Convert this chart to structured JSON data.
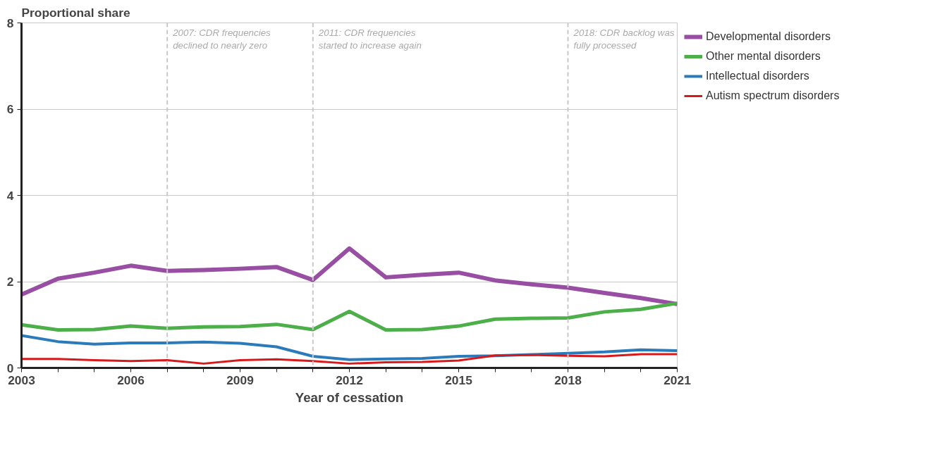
{
  "chart_data": {
    "type": "line",
    "ylabel": "Proportional share",
    "xlabel": "Year of cessation",
    "x": [
      2003,
      2004,
      2005,
      2006,
      2007,
      2008,
      2009,
      2010,
      2011,
      2012,
      2013,
      2014,
      2015,
      2016,
      2017,
      2018,
      2019,
      2020,
      2021
    ],
    "series": [
      {
        "name": "Developmental disorders",
        "color": "#984ea3",
        "values": [
          1.7,
          2.07,
          2.21,
          2.37,
          2.25,
          2.27,
          2.3,
          2.34,
          2.04,
          2.77,
          2.1,
          2.16,
          2.21,
          2.03,
          1.94,
          1.86,
          1.74,
          1.62,
          1.48
        ]
      },
      {
        "name": "Other mental disorders",
        "color": "#4daf4a",
        "values": [
          1.0,
          0.88,
          0.89,
          0.97,
          0.92,
          0.95,
          0.96,
          1.01,
          0.89,
          1.31,
          0.88,
          0.89,
          0.97,
          1.13,
          1.15,
          1.16,
          1.3,
          1.36,
          1.5
        ]
      },
      {
        "name": "Intellectual disorders",
        "color": "#2b7bba",
        "values": [
          0.75,
          0.61,
          0.55,
          0.58,
          0.58,
          0.6,
          0.57,
          0.49,
          0.27,
          0.19,
          0.21,
          0.22,
          0.27,
          0.28,
          0.31,
          0.34,
          0.37,
          0.42,
          0.4
        ]
      },
      {
        "name": "Autism spectrum disorders",
        "color": "#d7191c",
        "values": [
          0.21,
          0.21,
          0.18,
          0.16,
          0.18,
          0.1,
          0.18,
          0.2,
          0.16,
          0.1,
          0.13,
          0.14,
          0.17,
          0.29,
          0.3,
          0.28,
          0.27,
          0.32,
          0.32
        ]
      }
    ],
    "xlim": [
      2003,
      2021
    ],
    "xticks": [
      2003,
      {
        "value": 2004,
        "label": null
      },
      {
        "value": 2005,
        "label": null
      },
      2006,
      {
        "value": 2007,
        "label": null
      },
      {
        "value": 2008,
        "label": null
      },
      2009,
      {
        "value": 2010,
        "label": null
      },
      {
        "value": 2011,
        "label": null
      },
      2012,
      {
        "value": 2013,
        "label": null
      },
      {
        "value": 2014,
        "label": null
      },
      2015,
      {
        "value": 2016,
        "label": null
      },
      {
        "value": 2017,
        "label": null
      },
      2018,
      {
        "value": 2019,
        "label": null
      },
      {
        "value": 2020,
        "label": null
      },
      2021
    ],
    "ylim": [
      0,
      8
    ],
    "yticks": [
      0,
      2,
      4,
      6,
      8
    ],
    "grid": "y",
    "legend": "right",
    "marker": "none",
    "line_style": "solid",
    "ref_lines": [
      {
        "axis": "x",
        "value": 2007,
        "label": "2007: CDR frequencies declined to nearly zero",
        "color": "#c8c8c8",
        "line_style": "dashed"
      },
      {
        "axis": "x",
        "value": 2011,
        "label": "2011: CDR  frequencies started to increase again",
        "color": "#c8c8c8",
        "line_style": "dashed"
      },
      {
        "axis": "x",
        "value": 2018,
        "label": "2018: CDR backlog was fully processed",
        "color": "#c8c8c8",
        "line_style": "dashed"
      }
    ]
  }
}
